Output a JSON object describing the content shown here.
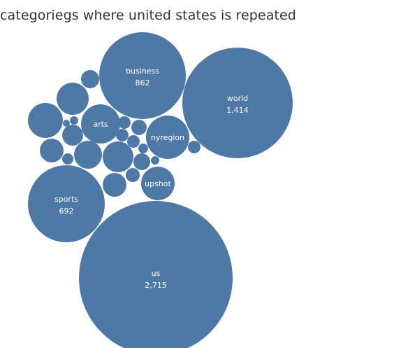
{
  "chart_data": {
    "type": "bubble",
    "title": "categoriegs where united states is repeated",
    "color": "#4e79a7",
    "bubbles": [
      {
        "label": "us",
        "value_text": "2,715",
        "value": 2715
      },
      {
        "label": "world",
        "value_text": "1,414",
        "value": 1414
      },
      {
        "label": "business",
        "value_text": "862",
        "value": 862
      },
      {
        "label": "sports",
        "value_text": "692",
        "value": 692
      },
      {
        "label": "nyregion",
        "value_text": "",
        "value": null
      },
      {
        "label": "arts",
        "value_text": "",
        "value": null
      },
      {
        "label": "upshot",
        "value_text": "",
        "value": null
      },
      {
        "label": "",
        "value_text": "",
        "value": null
      },
      {
        "label": "",
        "value_text": "",
        "value": null
      },
      {
        "label": "",
        "value_text": "",
        "value": null
      },
      {
        "label": "",
        "value_text": "",
        "value": null
      },
      {
        "label": "",
        "value_text": "",
        "value": null
      },
      {
        "label": "",
        "value_text": "",
        "value": null
      },
      {
        "label": "",
        "value_text": "",
        "value": null
      },
      {
        "label": "",
        "value_text": "",
        "value": null
      },
      {
        "label": "",
        "value_text": "",
        "value": null
      },
      {
        "label": "",
        "value_text": "",
        "value": null
      },
      {
        "label": "",
        "value_text": "",
        "value": null
      },
      {
        "label": "",
        "value_text": "",
        "value": null
      },
      {
        "label": "",
        "value_text": "",
        "value": null
      },
      {
        "label": "",
        "value_text": "",
        "value": null
      },
      {
        "label": "",
        "value_text": "",
        "value": null
      },
      {
        "label": "",
        "value_text": "",
        "value": null
      },
      {
        "label": "",
        "value_text": "",
        "value": null
      },
      {
        "label": "",
        "value_text": "",
        "value": null
      },
      {
        "label": "",
        "value_text": "",
        "value": null
      },
      {
        "label": "",
        "value_text": "",
        "value": null
      }
    ]
  }
}
